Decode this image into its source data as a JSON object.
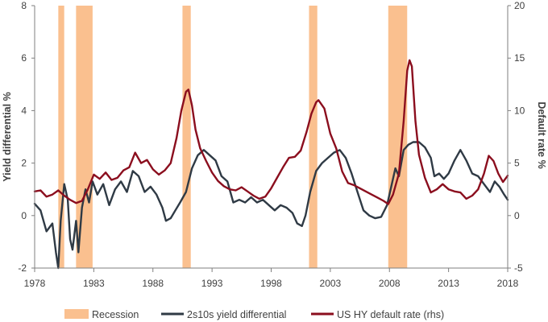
{
  "chart_data": {
    "type": "line",
    "title": "",
    "xlabel": "",
    "ylabel": "Yield differential %",
    "y2label": "Default rate %",
    "xlim": [
      1978,
      2018
    ],
    "ylim": [
      -2,
      8
    ],
    "y2lim": [
      -5,
      20
    ],
    "x_ticks": [
      "1978",
      "1983",
      "1988",
      "1993",
      "1998",
      "2003",
      "2008",
      "2013",
      "2018"
    ],
    "y_ticks": [
      "-2",
      "0",
      "2",
      "4",
      "6",
      "8"
    ],
    "y2_ticks": [
      "-5",
      "0",
      "5",
      "10",
      "15",
      "20"
    ],
    "grid": false,
    "legend_position": "bottom",
    "recessions": {
      "name": "Recession",
      "color": "#FAC08F",
      "periods": [
        [
          1980.0,
          1980.5
        ],
        [
          1981.5,
          1982.9
        ],
        [
          1990.5,
          1991.2
        ],
        [
          2001.2,
          2001.9
        ],
        [
          2007.9,
          2009.5
        ]
      ]
    },
    "series": [
      {
        "name": "2s10s yield differential",
        "axis": "left",
        "color": "#2F3A45",
        "points": [
          [
            1978.0,
            0.45
          ],
          [
            1978.5,
            0.2
          ],
          [
            1979.0,
            -0.6
          ],
          [
            1979.5,
            -0.3
          ],
          [
            1979.8,
            -1.4
          ],
          [
            1980.0,
            -2.0
          ],
          [
            1980.2,
            -0.2
          ],
          [
            1980.5,
            1.2
          ],
          [
            1980.8,
            0.6
          ],
          [
            1981.0,
            -0.9
          ],
          [
            1981.2,
            -1.3
          ],
          [
            1981.5,
            -0.2
          ],
          [
            1981.7,
            -1.4
          ],
          [
            1982.0,
            0.3
          ],
          [
            1982.3,
            1.0
          ],
          [
            1982.6,
            0.5
          ],
          [
            1982.9,
            1.3
          ],
          [
            1983.3,
            0.8
          ],
          [
            1983.8,
            1.2
          ],
          [
            1984.3,
            0.4
          ],
          [
            1984.8,
            1.0
          ],
          [
            1985.3,
            1.3
          ],
          [
            1985.8,
            0.9
          ],
          [
            1986.3,
            1.7
          ],
          [
            1986.8,
            1.5
          ],
          [
            1987.3,
            0.9
          ],
          [
            1987.8,
            1.1
          ],
          [
            1988.3,
            0.8
          ],
          [
            1988.8,
            0.3
          ],
          [
            1989.1,
            -0.2
          ],
          [
            1989.5,
            -0.1
          ],
          [
            1989.9,
            0.2
          ],
          [
            1990.3,
            0.5
          ],
          [
            1990.8,
            0.9
          ],
          [
            1991.3,
            1.8
          ],
          [
            1991.8,
            2.3
          ],
          [
            1992.3,
            2.5
          ],
          [
            1992.8,
            2.3
          ],
          [
            1993.3,
            2.1
          ],
          [
            1993.8,
            1.5
          ],
          [
            1994.3,
            1.3
          ],
          [
            1994.8,
            0.5
          ],
          [
            1995.3,
            0.6
          ],
          [
            1995.8,
            0.5
          ],
          [
            1996.3,
            0.7
          ],
          [
            1996.8,
            0.5
          ],
          [
            1997.3,
            0.6
          ],
          [
            1997.8,
            0.4
          ],
          [
            1998.3,
            0.2
          ],
          [
            1998.8,
            0.4
          ],
          [
            1999.3,
            0.3
          ],
          [
            1999.8,
            0.1
          ],
          [
            2000.2,
            -0.3
          ],
          [
            2000.6,
            -0.4
          ],
          [
            2000.9,
            0.0
          ],
          [
            2001.3,
            0.9
          ],
          [
            2001.8,
            1.7
          ],
          [
            2002.3,
            2.0
          ],
          [
            2002.8,
            2.2
          ],
          [
            2003.3,
            2.4
          ],
          [
            2003.8,
            2.5
          ],
          [
            2004.3,
            2.2
          ],
          [
            2004.8,
            1.6
          ],
          [
            2005.3,
            0.9
          ],
          [
            2005.8,
            0.2
          ],
          [
            2006.3,
            0.0
          ],
          [
            2006.8,
            -0.1
          ],
          [
            2007.3,
            -0.05
          ],
          [
            2007.8,
            0.4
          ],
          [
            2008.2,
            1.2
          ],
          [
            2008.5,
            1.8
          ],
          [
            2008.8,
            1.5
          ],
          [
            2009.2,
            2.5
          ],
          [
            2009.6,
            2.7
          ],
          [
            2010.0,
            2.8
          ],
          [
            2010.5,
            2.8
          ],
          [
            2011.0,
            2.6
          ],
          [
            2011.5,
            2.2
          ],
          [
            2011.8,
            1.5
          ],
          [
            2012.2,
            1.6
          ],
          [
            2012.6,
            1.4
          ],
          [
            2013.0,
            1.6
          ],
          [
            2013.5,
            2.1
          ],
          [
            2014.0,
            2.5
          ],
          [
            2014.5,
            2.1
          ],
          [
            2015.0,
            1.6
          ],
          [
            2015.5,
            1.5
          ],
          [
            2016.0,
            1.2
          ],
          [
            2016.5,
            0.9
          ],
          [
            2016.9,
            1.3
          ],
          [
            2017.3,
            1.1
          ],
          [
            2017.7,
            0.8
          ],
          [
            2018.0,
            0.6
          ]
        ]
      },
      {
        "name": "US HY default rate (rhs)",
        "axis": "right",
        "color": "#8B0E1E",
        "points": [
          [
            1978.0,
            2.3
          ],
          [
            1978.5,
            2.4
          ],
          [
            1979.0,
            1.8
          ],
          [
            1979.5,
            2.0
          ],
          [
            1980.0,
            2.4
          ],
          [
            1980.5,
            1.9
          ],
          [
            1981.0,
            1.5
          ],
          [
            1981.5,
            1.2
          ],
          [
            1982.0,
            1.4
          ],
          [
            1982.5,
            2.5
          ],
          [
            1983.0,
            3.9
          ],
          [
            1983.5,
            3.5
          ],
          [
            1984.0,
            4.1
          ],
          [
            1984.5,
            3.4
          ],
          [
            1985.0,
            3.6
          ],
          [
            1985.5,
            4.3
          ],
          [
            1986.0,
            4.6
          ],
          [
            1986.5,
            6.0
          ],
          [
            1987.0,
            5.0
          ],
          [
            1987.5,
            5.3
          ],
          [
            1988.0,
            4.4
          ],
          [
            1988.5,
            3.9
          ],
          [
            1989.0,
            4.3
          ],
          [
            1989.5,
            5.0
          ],
          [
            1990.0,
            7.4
          ],
          [
            1990.4,
            10.0
          ],
          [
            1990.8,
            11.8
          ],
          [
            1991.0,
            12.0
          ],
          [
            1991.3,
            10.5
          ],
          [
            1991.6,
            8.2
          ],
          [
            1992.0,
            6.4
          ],
          [
            1992.5,
            5.2
          ],
          [
            1993.0,
            4.1
          ],
          [
            1993.5,
            3.3
          ],
          [
            1994.0,
            2.8
          ],
          [
            1994.5,
            2.5
          ],
          [
            1995.0,
            2.4
          ],
          [
            1995.5,
            2.7
          ],
          [
            1996.0,
            2.3
          ],
          [
            1996.5,
            1.9
          ],
          [
            1997.0,
            1.6
          ],
          [
            1997.5,
            1.8
          ],
          [
            1998.0,
            2.6
          ],
          [
            1998.5,
            3.6
          ],
          [
            1999.0,
            4.6
          ],
          [
            1999.5,
            5.5
          ],
          [
            2000.0,
            5.6
          ],
          [
            2000.5,
            6.2
          ],
          [
            2001.0,
            8.0
          ],
          [
            2001.4,
            9.7
          ],
          [
            2001.8,
            10.8
          ],
          [
            2002.0,
            11.0
          ],
          [
            2002.5,
            10.2
          ],
          [
            2003.0,
            7.8
          ],
          [
            2003.5,
            6.4
          ],
          [
            2004.0,
            4.2
          ],
          [
            2004.5,
            3.1
          ],
          [
            2005.0,
            2.9
          ],
          [
            2005.5,
            2.6
          ],
          [
            2006.0,
            2.3
          ],
          [
            2006.5,
            2.0
          ],
          [
            2007.0,
            1.7
          ],
          [
            2007.5,
            1.4
          ],
          [
            2007.9,
            1.1
          ],
          [
            2008.3,
            2.0
          ],
          [
            2008.8,
            4.0
          ],
          [
            2009.2,
            9.0
          ],
          [
            2009.5,
            13.8
          ],
          [
            2009.7,
            14.8
          ],
          [
            2009.9,
            14.2
          ],
          [
            2010.2,
            9.0
          ],
          [
            2010.5,
            5.8
          ],
          [
            2011.0,
            3.6
          ],
          [
            2011.5,
            2.2
          ],
          [
            2012.0,
            2.5
          ],
          [
            2012.5,
            3.0
          ],
          [
            2013.0,
            2.5
          ],
          [
            2013.5,
            2.3
          ],
          [
            2014.0,
            2.2
          ],
          [
            2014.5,
            1.6
          ],
          [
            2015.0,
            1.9
          ],
          [
            2015.5,
            2.5
          ],
          [
            2016.0,
            4.0
          ],
          [
            2016.4,
            5.7
          ],
          [
            2016.8,
            5.2
          ],
          [
            2017.2,
            4.0
          ],
          [
            2017.6,
            3.2
          ],
          [
            2018.0,
            3.8
          ]
        ]
      }
    ]
  }
}
